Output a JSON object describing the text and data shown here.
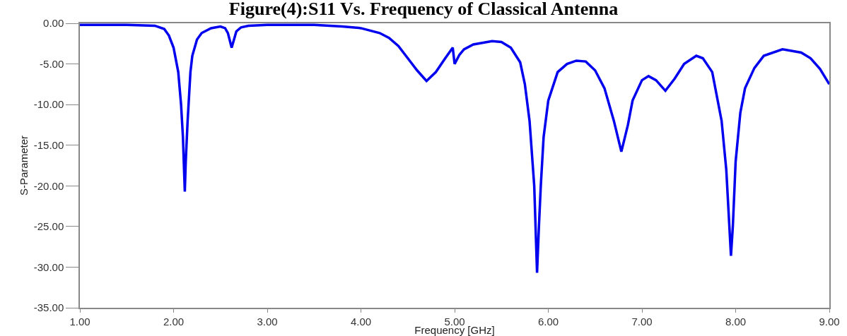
{
  "chart_data": {
    "type": "line",
    "title": "Figure(4):S11 Vs. Frequency of Classical Antenna",
    "xlabel": "Frequency [GHz]",
    "ylabel": "S-Parameter",
    "series": [
      {
        "color": "#0000ee",
        "x": [
          1.0,
          1.5,
          1.8,
          1.9,
          1.95,
          2.0,
          2.05,
          2.08,
          2.1,
          2.12,
          2.13,
          2.15,
          2.18,
          2.2,
          2.25,
          2.3,
          2.4,
          2.5,
          2.55,
          2.58,
          2.62,
          2.65,
          2.67,
          2.72,
          2.8,
          3.0,
          3.5,
          3.8,
          4.0,
          4.2,
          4.3,
          4.4,
          4.5,
          4.6,
          4.7,
          4.8,
          4.9,
          4.98,
          5.0,
          5.05,
          5.1,
          5.2,
          5.4,
          5.5,
          5.6,
          5.7,
          5.75,
          5.8,
          5.85,
          5.88,
          5.9,
          5.92,
          5.95,
          6.0,
          6.1,
          6.2,
          6.3,
          6.4,
          6.5,
          6.6,
          6.7,
          6.78,
          6.85,
          6.9,
          7.0,
          7.07,
          7.15,
          7.25,
          7.35,
          7.45,
          7.58,
          7.65,
          7.75,
          7.85,
          7.9,
          7.95,
          7.97,
          8.0,
          8.05,
          8.1,
          8.2,
          8.3,
          8.5,
          8.7,
          8.8,
          8.9,
          9.0
        ],
        "values": [
          -0.2,
          -0.2,
          -0.3,
          -0.7,
          -1.5,
          -3.0,
          -6.0,
          -10.0,
          -14.0,
          -20.7,
          -17.0,
          -12.0,
          -6.0,
          -4.0,
          -2.0,
          -1.2,
          -0.6,
          -0.4,
          -0.6,
          -1.2,
          -3.0,
          -1.8,
          -1.0,
          -0.5,
          -0.3,
          -0.2,
          -0.2,
          -0.4,
          -0.6,
          -1.2,
          -1.8,
          -2.8,
          -4.3,
          -5.8,
          -7.1,
          -6.0,
          -4.3,
          -3.0,
          -5.0,
          -3.9,
          -3.2,
          -2.6,
          -2.2,
          -2.3,
          -3.0,
          -4.8,
          -7.5,
          -12.0,
          -20.0,
          -30.7,
          -25.0,
          -20.0,
          -14.0,
          -9.5,
          -6.0,
          -5.0,
          -4.6,
          -4.7,
          -5.8,
          -8.0,
          -12.0,
          -15.8,
          -12.5,
          -9.5,
          -7.0,
          -6.5,
          -7.0,
          -8.3,
          -6.8,
          -5.0,
          -4.0,
          -4.3,
          -6.0,
          -12.0,
          -18.0,
          -28.6,
          -25.0,
          -17.0,
          -11.0,
          -8.0,
          -5.5,
          -4.0,
          -3.2,
          -3.6,
          -4.3,
          -5.6,
          -7.5
        ]
      }
    ],
    "xlim": [
      1,
      9
    ],
    "ylim": [
      -35,
      0
    ],
    "xticks": [
      {
        "value": 1,
        "label": "1.00"
      },
      {
        "value": 2,
        "label": "2.00"
      },
      {
        "value": 3,
        "label": "3.00"
      },
      {
        "value": 4,
        "label": "4.00"
      },
      {
        "value": 5,
        "label": "5.00"
      },
      {
        "value": 6,
        "label": "6.00"
      },
      {
        "value": 7,
        "label": "7.00"
      },
      {
        "value": 8,
        "label": "8.00"
      },
      {
        "value": 9,
        "label": "9.00"
      }
    ],
    "yticks": [
      {
        "value": 0,
        "label": "0.00"
      },
      {
        "value": -5,
        "label": "-5.00"
      },
      {
        "value": -10,
        "label": "-10.00"
      },
      {
        "value": -15,
        "label": "-15.00"
      },
      {
        "value": -20,
        "label": "-20.00"
      },
      {
        "value": -25,
        "label": "-25.00"
      },
      {
        "value": -30,
        "label": "-30.00"
      },
      {
        "value": -35,
        "label": "-35.00"
      }
    ],
    "grid": false,
    "marker": "none",
    "line_style": "solid"
  }
}
